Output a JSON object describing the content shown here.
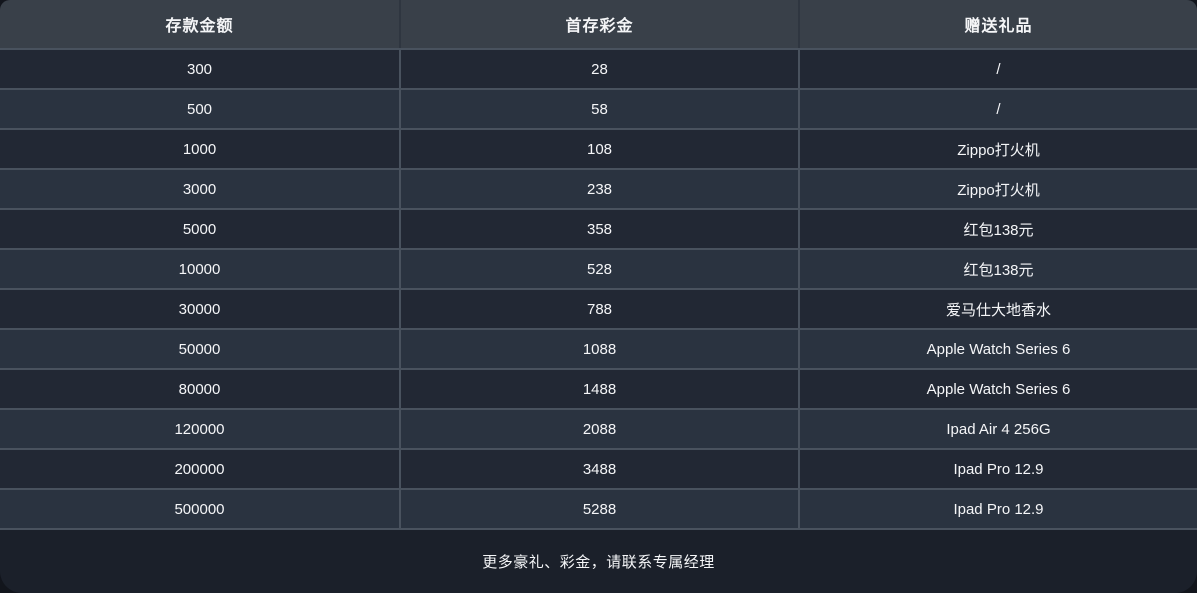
{
  "colors": {
    "page_bg": "#12151c",
    "header_bg": "#394049",
    "row_dark": "#222834",
    "row_light": "#2a3340",
    "divider": "#49525e",
    "header_divider": "#2f3640",
    "footer_bg": "#1b202a",
    "text": "#f5f6f8"
  },
  "table": {
    "headers": [
      {
        "label": "存款金额"
      },
      {
        "label": "首存彩金"
      },
      {
        "label": "赠送礼品"
      }
    ],
    "rows": [
      {
        "deposit": "300",
        "bonus": "28",
        "gift": "/"
      },
      {
        "deposit": "500",
        "bonus": "58",
        "gift": "/"
      },
      {
        "deposit": "1000",
        "bonus": "108",
        "gift": "Zippo打火机"
      },
      {
        "deposit": "3000",
        "bonus": "238",
        "gift": "Zippo打火机"
      },
      {
        "deposit": "5000",
        "bonus": "358",
        "gift": "红包138元"
      },
      {
        "deposit": "10000",
        "bonus": "528",
        "gift": "红包138元"
      },
      {
        "deposit": "30000",
        "bonus": "788",
        "gift": "爱马仕大地香水"
      },
      {
        "deposit": "50000",
        "bonus": "1088",
        "gift": "Apple Watch Series 6"
      },
      {
        "deposit": "80000",
        "bonus": "1488",
        "gift": "Apple Watch Series 6"
      },
      {
        "deposit": "120000",
        "bonus": "2088",
        "gift": "Ipad Air 4 256G"
      },
      {
        "deposit": "200000",
        "bonus": "3488",
        "gift": "Ipad Pro 12.9"
      },
      {
        "deposit": "500000",
        "bonus": "5288",
        "gift": "Ipad Pro 12.9"
      }
    ],
    "footer_note": "更多豪礼、彩金，请联系专属经理"
  }
}
